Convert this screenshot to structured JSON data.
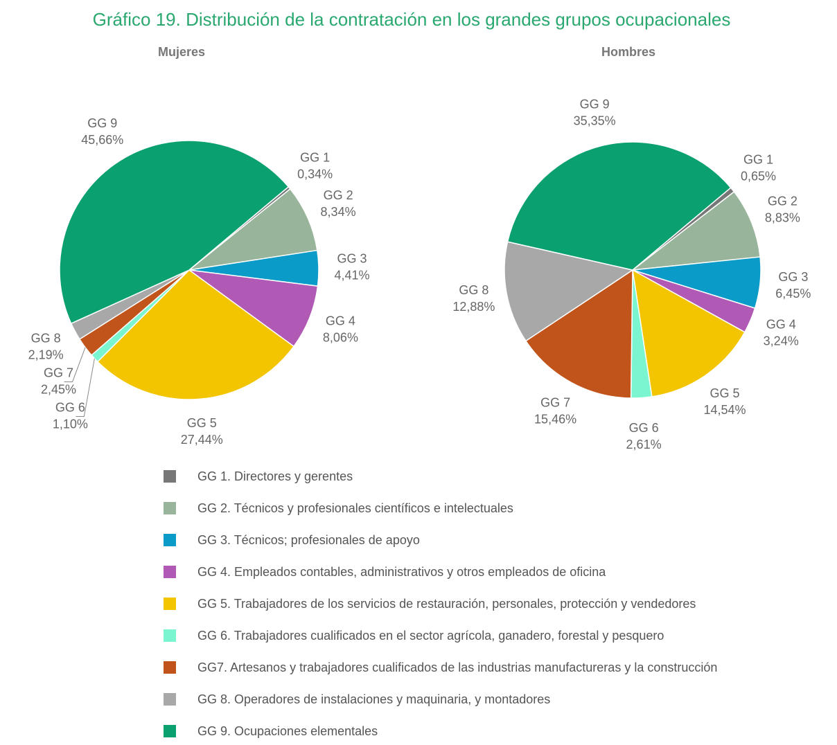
{
  "title": "Gráfico 19. Distribución de la contratación en los grandes grupos ocupacionales",
  "legend": [
    {
      "label": "GG 1. Directores y gerentes",
      "color": "#777777"
    },
    {
      "label": "GG 2. Técnicos y profesionales científicos e intelectuales",
      "color": "#98b49a"
    },
    {
      "label": "GG 3. Técnicos; profesionales de apoyo",
      "color": "#0a9bc9"
    },
    {
      "label": "GG 4. Empleados contables, administrativos y otros empleados de oficina",
      "color": "#b05ab6"
    },
    {
      "label": "GG 5. Trabajadores de los servicios de restauración, personales, protección y vendedores",
      "color": "#f2c500"
    },
    {
      "label": "GG 6. Trabajadores cualificados en el sector agrícola, ganadero, forestal y pesquero",
      "color": "#7af5cf"
    },
    {
      "label": "GG7.  Artesanos y trabajadores cualificados de las industrias manufactureras y la construcción",
      "color": "#c0541a"
    },
    {
      "label": "GG 8. Operadores de instalaciones y maquinaria, y montadores",
      "color": "#a8a8a8"
    },
    {
      "label": "GG 9. Ocupaciones elementales",
      "color": "#0aa070"
    }
  ],
  "chart_data": [
    {
      "type": "pie",
      "title": "Mujeres",
      "categories": [
        "GG 1",
        "GG 2",
        "GG 3",
        "GG 4",
        "GG 5",
        "GG 6",
        "GG 7",
        "GG 8",
        "GG 9"
      ],
      "values": [
        0.34,
        8.34,
        4.41,
        8.06,
        27.44,
        1.1,
        2.45,
        2.19,
        45.66
      ],
      "value_labels": [
        "0,34%",
        "8,34%",
        "4,41%",
        "8,06%",
        "27,44%",
        "1,10%",
        "2,45%",
        "2,19%",
        "45,66%"
      ]
    },
    {
      "type": "pie",
      "title": "Hombres",
      "categories": [
        "GG 1",
        "GG 2",
        "GG 3",
        "GG 4",
        "GG 5",
        "GG 6",
        "GG 7",
        "GG 8",
        "GG 9"
      ],
      "values": [
        0.65,
        8.83,
        6.45,
        3.24,
        14.54,
        2.61,
        15.46,
        12.88,
        35.35
      ],
      "value_labels": [
        "0,65%",
        "8,83%",
        "6,45%",
        "3,24%",
        "14,54%",
        "2,61%",
        "15,46%",
        "12,88%",
        "35,35%"
      ]
    }
  ]
}
